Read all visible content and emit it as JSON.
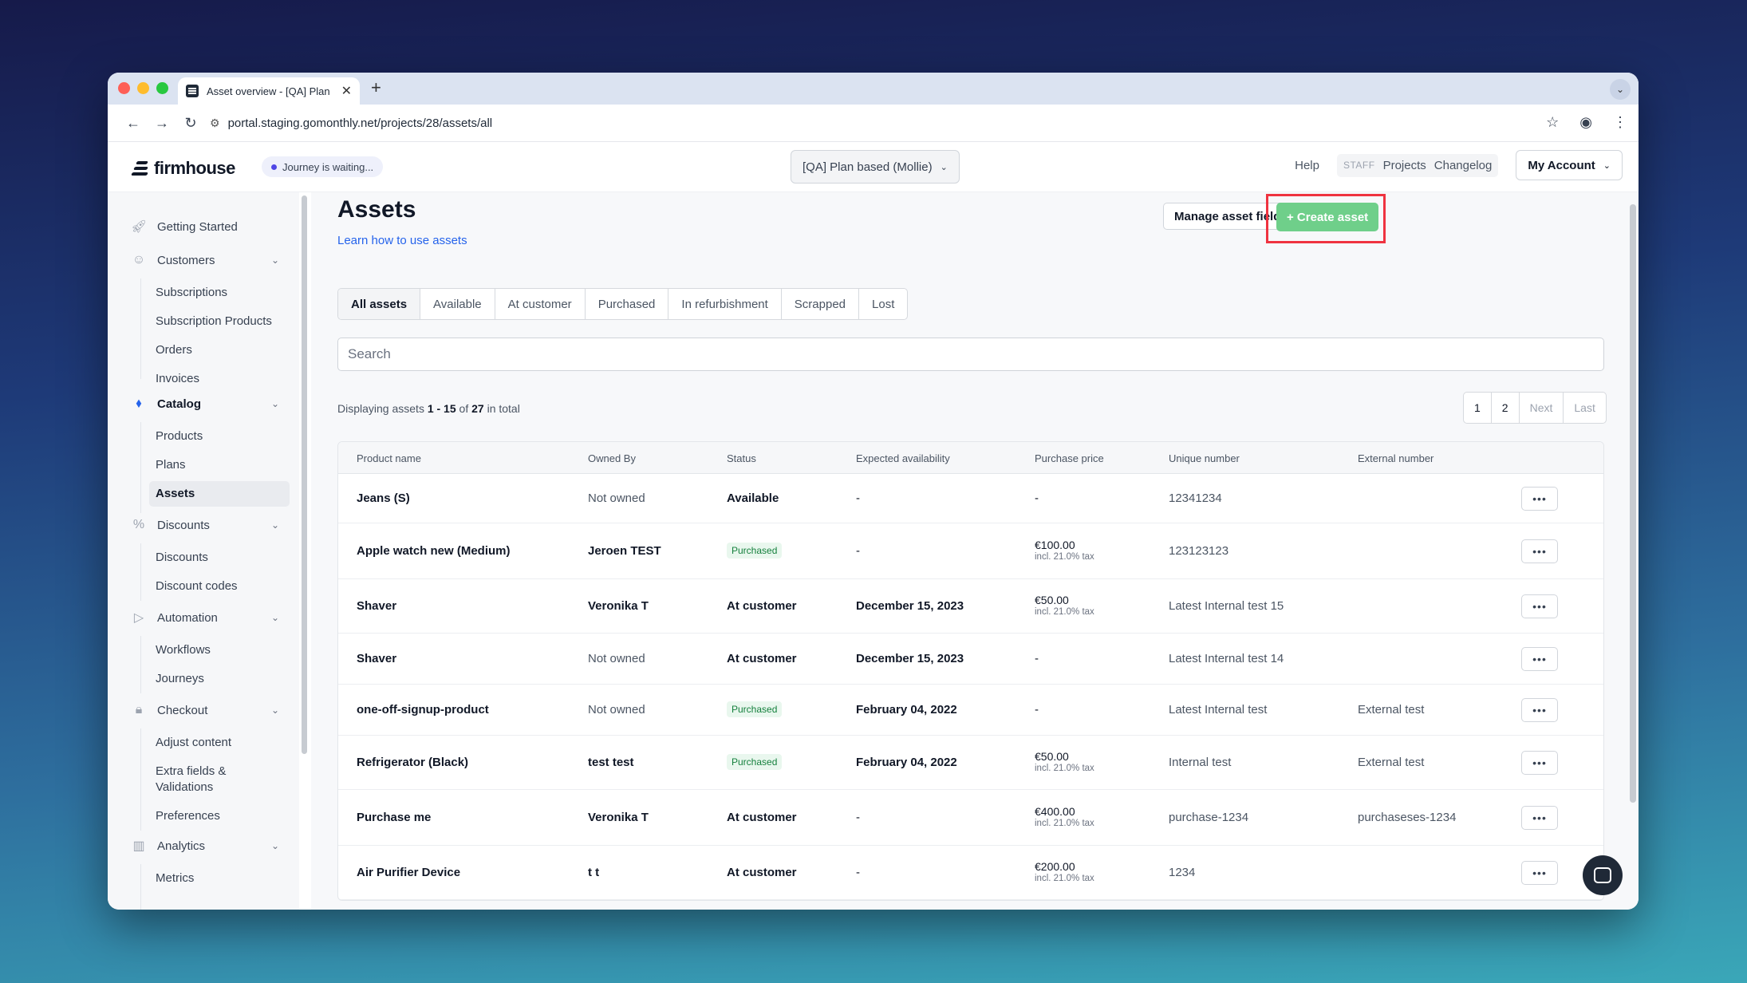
{
  "browser": {
    "tab_title": "Asset overview - [QA] Plan b…",
    "url": "portal.staging.gomonthly.net/projects/28/assets/all"
  },
  "header": {
    "logo": "firmhouse",
    "journey_status": "Journey is waiting...",
    "project": "[QA] Plan based (Mollie)",
    "help": "Help",
    "staff": "STAFF",
    "projects": "Projects",
    "changelog": "Changelog",
    "account": "My Account"
  },
  "sidebar": {
    "getting_started": "Getting Started",
    "customers": "Customers",
    "customers_items": [
      "Subscriptions",
      "Subscription Products",
      "Orders",
      "Invoices"
    ],
    "catalog": "Catalog",
    "catalog_items": [
      "Products",
      "Plans",
      "Assets"
    ],
    "discounts": "Discounts",
    "discounts_items": [
      "Discounts",
      "Discount codes"
    ],
    "automation": "Automation",
    "automation_items": [
      "Workflows",
      "Journeys"
    ],
    "checkout": "Checkout",
    "checkout_items": [
      "Adjust content",
      "Extra fields & Validations",
      "Preferences"
    ],
    "analytics": "Analytics",
    "analytics_items": [
      "Metrics"
    ]
  },
  "main": {
    "title": "Assets",
    "learn_link": "Learn how to use assets",
    "manage_button": "Manage asset fields",
    "create_button": "+ Create asset",
    "filters": [
      "All assets",
      "Available",
      "At customer",
      "Purchased",
      "In refurbishment",
      "Scrapped",
      "Lost"
    ],
    "search_placeholder": "Search",
    "displaying": {
      "prefix": "Displaying assets",
      "range": "1 - 15",
      "of": "of",
      "total": "27",
      "suffix": "in total"
    },
    "pager": [
      "1",
      "2",
      "Next",
      "Last"
    ],
    "columns": [
      "Product name",
      "Owned By",
      "Status",
      "Expected availability",
      "Purchase price",
      "Unique number",
      "External number"
    ],
    "rows": [
      {
        "product": "Jeans (S)",
        "owner": "Not owned",
        "status": "Available",
        "availability": "-",
        "price": "-",
        "tax": "",
        "unique": "12341234",
        "external": ""
      },
      {
        "product": "Apple watch new (Medium)",
        "owner": "Jeroen TEST",
        "status": "Purchased",
        "availability": "-",
        "price": "€100.00",
        "tax": "incl. 21.0% tax",
        "unique": "123123123",
        "external": ""
      },
      {
        "product": "Shaver",
        "owner": "Veronika T",
        "status": "At customer",
        "availability": "December 15, 2023",
        "price": "€50.00",
        "tax": "incl. 21.0% tax",
        "unique": "Latest Internal test 15",
        "external": ""
      },
      {
        "product": "Shaver",
        "owner": "Not owned",
        "status": "At customer",
        "availability": "December 15, 2023",
        "price": "-",
        "tax": "",
        "unique": "Latest Internal test 14",
        "external": ""
      },
      {
        "product": "one-off-signup-product",
        "owner": "Not owned",
        "status": "Purchased",
        "availability": "February 04, 2022",
        "price": "-",
        "tax": "",
        "unique": "Latest Internal test",
        "external": "External test"
      },
      {
        "product": "Refrigerator (Black)",
        "owner": "test test",
        "status": "Purchased",
        "availability": "February 04, 2022",
        "price": "€50.00",
        "tax": "incl. 21.0% tax",
        "unique": "Internal test",
        "external": "External test"
      },
      {
        "product": "Purchase me",
        "owner": "Veronika T",
        "status": "At customer",
        "availability": "-",
        "price": "€400.00",
        "tax": "incl. 21.0% tax",
        "unique": "purchase-1234",
        "external": "purchaseses-1234"
      },
      {
        "product": "Air Purifier Device",
        "owner": "t t",
        "status": "At customer",
        "availability": "-",
        "price": "€200.00",
        "tax": "incl. 21.0% tax",
        "unique": "1234",
        "external": ""
      }
    ],
    "more_label": "•••"
  },
  "colors": {
    "create_button": "#6fcf8a",
    "highlight": "#ef3340",
    "link": "#2563eb",
    "purchased_badge": "#e9f7ee"
  }
}
